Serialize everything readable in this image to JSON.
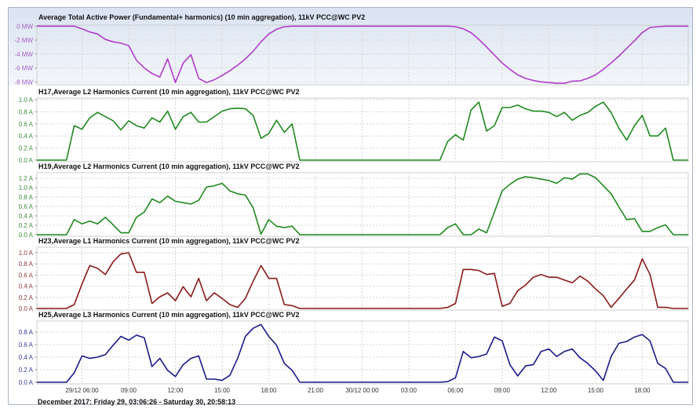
{
  "chart_data": {
    "type": "line",
    "x": [
      "29/12 03:06",
      "29/12 03:30",
      "29/12 04:00",
      "29/12 04:30",
      "29/12 05:00",
      "29/12 05:30",
      "29/12 06:00",
      "29/12 06:30",
      "29/12 07:00",
      "29/12 07:30",
      "29/12 08:00",
      "29/12 08:30",
      "29/12 09:00",
      "29/12 09:30",
      "29/12 10:00",
      "29/12 10:30",
      "29/12 11:00",
      "29/12 11:30",
      "29/12 12:00",
      "29/12 12:30",
      "29/12 13:00",
      "29/12 13:30",
      "29/12 14:00",
      "29/12 14:30",
      "29/12 15:00",
      "29/12 15:30",
      "29/12 16:00",
      "29/12 16:30",
      "29/12 17:00",
      "29/12 17:30",
      "29/12 18:00",
      "29/12 18:30",
      "29/12 19:00",
      "29/12 19:30",
      "29/12 20:00",
      "29/12 20:30",
      "29/12 21:00",
      "29/12 21:30",
      "29/12 22:00",
      "29/12 22:30",
      "29/12 23:00",
      "29/12 23:30",
      "30/12 00:00",
      "30/12 00:30",
      "30/12 01:00",
      "30/12 01:30",
      "30/12 02:00",
      "30/12 02:30",
      "30/12 03:00",
      "30/12 03:30",
      "30/12 04:00",
      "30/12 04:30",
      "30/12 05:00",
      "30/12 05:30",
      "30/12 06:00",
      "30/12 06:30",
      "30/12 07:00",
      "30/12 07:30",
      "30/12 08:00",
      "30/12 08:30",
      "30/12 09:00",
      "30/12 09:30",
      "30/12 10:00",
      "30/12 10:30",
      "30/12 11:00",
      "30/12 11:30",
      "30/12 12:00",
      "30/12 12:30",
      "30/12 13:00",
      "30/12 13:30",
      "30/12 14:00",
      "30/12 14:30",
      "30/12 15:00",
      "30/12 15:30",
      "30/12 16:00",
      "30/12 16:30",
      "30/12 17:00",
      "30/12 17:30",
      "30/12 18:00",
      "30/12 18:30",
      "30/12 19:00",
      "30/12 19:30",
      "30/12 20:00",
      "30/12 20:30",
      "30/12 20:58"
    ],
    "xticks": [
      "29/12 06:00",
      "09:00",
      "12:00",
      "15:00",
      "18:00",
      "21:00",
      "30/12 00:00",
      "03:00",
      "06:00",
      "09:00",
      "12:00",
      "15:00",
      "18:00"
    ],
    "caption": "December 2017: Friday 29, 03:06:26 - Saturday 30, 20:58:13",
    "grid": true,
    "panels": [
      {
        "title": "Average Total Active Power  (Fundamental+ harmonics) (10 min aggregation), 11kV PCC@WC PV2",
        "color": "#b03ccc",
        "label_color": "#a85bc4",
        "yticks": [
          {
            "v": 0,
            "label": "0 MW"
          },
          {
            "v": -2,
            "label": "-2 MW"
          },
          {
            "v": -4,
            "label": "-4 MW"
          },
          {
            "v": -6,
            "label": "-6 MW"
          },
          {
            "v": -8,
            "label": "-8 MW"
          }
        ],
        "values": [
          0,
          0,
          0,
          0,
          0,
          0,
          -0.38,
          -0.83,
          -1.13,
          -1.9,
          -2.25,
          -2.44,
          -2.8,
          -4.9,
          -6.0,
          -6.8,
          -7.3,
          -4.7,
          -8.1,
          -5.3,
          -4.1,
          -7.5,
          -8.1,
          -7.7,
          -7.1,
          -6.4,
          -5.6,
          -4.7,
          -3.6,
          -2.25,
          -1.13,
          -0.45,
          -0.08,
          0,
          0,
          0,
          0,
          0,
          0,
          0,
          0,
          0,
          0,
          0,
          0,
          0,
          0,
          0,
          0,
          0,
          0,
          0,
          0,
          0,
          -0.08,
          -0.38,
          -0.94,
          -1.9,
          -3.0,
          -4.15,
          -5.3,
          -6.2,
          -7.0,
          -7.5,
          -7.8,
          -8.0,
          -8.1,
          -8.2,
          -8.2,
          -7.9,
          -7.85,
          -7.5,
          -7.0,
          -6.2,
          -5.3,
          -4.3,
          -3.2,
          -2.1,
          -0.94,
          -0.19,
          -0.08,
          0,
          0,
          0,
          0
        ]
      },
      {
        "title": "H17,Average L2 Harmonics Current (10 min aggregation), 11kV PCC@WC PV2",
        "color": "#1f8a1f",
        "label_color": "#3f8f3f",
        "yticks": [
          {
            "v": 0,
            "label": "0.0 A"
          },
          {
            "v": 0.2,
            "label": "0.2 A"
          },
          {
            "v": 0.4,
            "label": "0.4 A"
          },
          {
            "v": 0.6,
            "label": "0.6 A"
          },
          {
            "v": 0.8,
            "label": "0.8 A"
          },
          {
            "v": 1.0,
            "label": "1.0 A"
          }
        ],
        "values": [
          0,
          0,
          0,
          0,
          0,
          0.57,
          0.51,
          0.7,
          0.79,
          0.72,
          0.65,
          0.5,
          0.65,
          0.57,
          0.53,
          0.7,
          0.63,
          0.81,
          0.51,
          0.72,
          0.79,
          0.63,
          0.63,
          0.72,
          0.81,
          0.85,
          0.86,
          0.85,
          0.74,
          0.36,
          0.44,
          0.66,
          0.46,
          0.6,
          0,
          0,
          0,
          0,
          0,
          0,
          0,
          0,
          0,
          0,
          0,
          0,
          0,
          0,
          0,
          0,
          0,
          0,
          0,
          0.31,
          0.42,
          0.33,
          0.83,
          0.96,
          0.48,
          0.57,
          0.87,
          0.87,
          0.91,
          0.85,
          0.81,
          0.81,
          0.79,
          0.72,
          0.79,
          0.66,
          0.74,
          0.79,
          0.89,
          0.96,
          0.79,
          0.53,
          0.33,
          0.57,
          0.74,
          0.4,
          0.4,
          0.53,
          0,
          0,
          0
        ]
      },
      {
        "title": "H19,Average L2 Harmonics Current (10 min aggregation), 11kV PCC@WC PV2",
        "color": "#1f8a1f",
        "label_color": "#3f8f3f",
        "yticks": [
          {
            "v": 0,
            "label": "0.0 A"
          },
          {
            "v": 0.2,
            "label": "0.2 A"
          },
          {
            "v": 0.4,
            "label": "0.4 A"
          },
          {
            "v": 0.6,
            "label": "0.6 A"
          },
          {
            "v": 0.8,
            "label": "0.8 A"
          },
          {
            "v": 1.0,
            "label": "1.0 A"
          },
          {
            "v": 1.2,
            "label": "1.2 A"
          }
        ],
        "values": [
          0,
          0,
          0,
          0,
          0,
          0.32,
          0.23,
          0.29,
          0.23,
          0.37,
          0.21,
          0.04,
          0.04,
          0.37,
          0.48,
          0.76,
          0.68,
          0.82,
          0.71,
          0.68,
          0.65,
          0.73,
          1.01,
          1.04,
          1.09,
          0.93,
          0.87,
          0.84,
          0.57,
          0.01,
          0.32,
          0.18,
          0.15,
          0.18,
          0,
          0,
          0,
          0,
          0,
          0,
          0,
          0,
          0,
          0,
          0,
          0,
          0,
          0,
          0,
          0,
          0,
          0,
          0,
          0.15,
          0.23,
          0,
          0,
          0.12,
          0.04,
          0.48,
          0.93,
          1.07,
          1.18,
          1.23,
          1.21,
          1.18,
          1.15,
          1.09,
          1.21,
          1.18,
          1.29,
          1.29,
          1.21,
          1.04,
          0.87,
          0.59,
          0.32,
          0.34,
          0.07,
          0.07,
          0.15,
          0.21,
          0,
          0,
          0
        ]
      },
      {
        "title": "H23,Average L1 Harmonics Current (10 min aggregation), 11kV PCC@WC PV2",
        "color": "#8b1a1a",
        "label_color": "#8b3a3a",
        "yticks": [
          {
            "v": 0,
            "label": "0.0 A"
          },
          {
            "v": 0.2,
            "label": "0.2 A"
          },
          {
            "v": 0.4,
            "label": "0.4 A"
          },
          {
            "v": 0.6,
            "label": "0.6 A"
          },
          {
            "v": 0.8,
            "label": "0.8 A"
          },
          {
            "v": 1.0,
            "label": "1.0 A"
          }
        ],
        "values": [
          0,
          0,
          0,
          0,
          0,
          0.07,
          0.44,
          0.77,
          0.72,
          0.61,
          0.84,
          0.98,
          1.0,
          0.65,
          0.65,
          0.09,
          0.21,
          0.28,
          0.14,
          0.39,
          0.21,
          0.54,
          0.14,
          0.28,
          0.18,
          0.07,
          0.02,
          0.18,
          0.49,
          0.77,
          0.54,
          0.54,
          0.07,
          0.05,
          0,
          0,
          0,
          0,
          0,
          0,
          0,
          0,
          0,
          0,
          0,
          0,
          0,
          0,
          0,
          0,
          0,
          0,
          0,
          0.02,
          0.09,
          0.7,
          0.7,
          0.68,
          0.61,
          0.63,
          0.04,
          0.09,
          0.32,
          0.42,
          0.56,
          0.61,
          0.56,
          0.56,
          0.51,
          0.46,
          0.58,
          0.49,
          0.35,
          0.23,
          0.02,
          0.18,
          0.35,
          0.51,
          0.89,
          0.61,
          0.02,
          0.02,
          0,
          0,
          0
        ]
      },
      {
        "title": "H25,Average L3 Harmonics Current (10 min aggregation), 11kV PCC@WC PV2",
        "color": "#1a1a8c",
        "label_color": "#3a3a9a",
        "yticks": [
          {
            "v": 0,
            "label": "0.0 A"
          },
          {
            "v": 0.2,
            "label": "0.2 A"
          },
          {
            "v": 0.4,
            "label": "0.4 A"
          },
          {
            "v": 0.6,
            "label": "0.6 A"
          },
          {
            "v": 0.8,
            "label": "0.8 A"
          }
        ],
        "values": [
          0,
          0,
          0,
          0,
          0,
          0.15,
          0.42,
          0.38,
          0.4,
          0.44,
          0.59,
          0.73,
          0.67,
          0.75,
          0.71,
          0.25,
          0.38,
          0.19,
          0.09,
          0.28,
          0.38,
          0.42,
          0.05,
          0.05,
          0.03,
          0.11,
          0.38,
          0.73,
          0.86,
          0.92,
          0.73,
          0.59,
          0.3,
          0.19,
          0,
          0,
          0,
          0,
          0,
          0,
          0,
          0,
          0,
          0,
          0,
          0,
          0,
          0,
          0,
          0,
          0,
          0,
          0,
          0.01,
          0.07,
          0.49,
          0.39,
          0.41,
          0.45,
          0.72,
          0.66,
          0.28,
          0.1,
          0.26,
          0.28,
          0.49,
          0.53,
          0.41,
          0.49,
          0.53,
          0.39,
          0.3,
          0.18,
          0.03,
          0.41,
          0.62,
          0.65,
          0.72,
          0.76,
          0.66,
          0.3,
          0.22,
          0,
          0,
          0
        ]
      }
    ]
  }
}
